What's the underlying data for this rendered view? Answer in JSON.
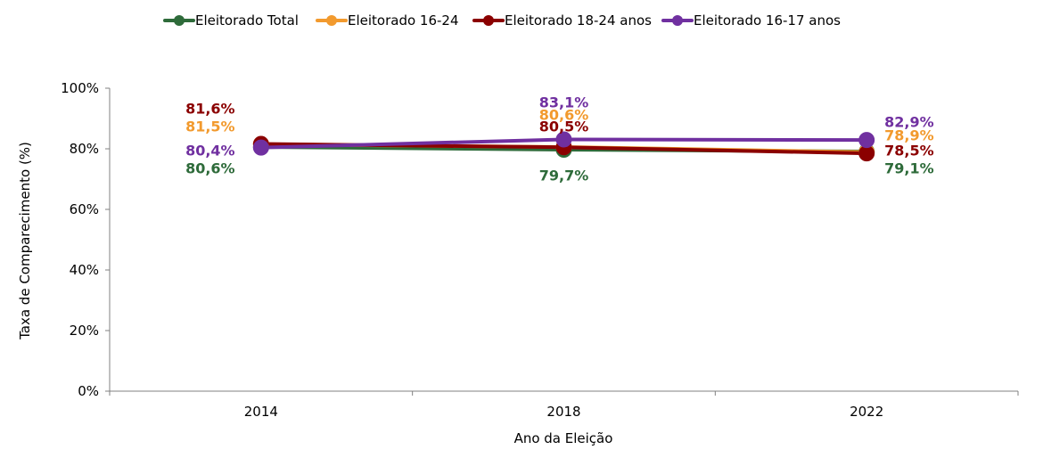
{
  "chart_data": {
    "type": "line",
    "title": "",
    "xlabel": "Ano da Eleição",
    "ylabel": "Taxa de Comparecimento (%)",
    "ylim": [
      0,
      100
    ],
    "y_ticks": [
      "0%",
      "20%",
      "40%",
      "60%",
      "80%",
      "100%"
    ],
    "grid": false,
    "legend_position": "top",
    "categories": [
      "2014",
      "2018",
      "2022"
    ],
    "series": [
      {
        "name": "Eleitorado Total",
        "color": "#2e6b3a",
        "values": [
          80.6,
          79.7,
          79.1
        ],
        "labels": [
          "80,6%",
          "79,7%",
          "79,1%"
        ]
      },
      {
        "name": "Eleitorado 16-24",
        "color": "#f29a2e",
        "values": [
          81.5,
          80.6,
          78.9
        ],
        "labels": [
          "81,5%",
          "80,6%",
          "78,9%"
        ]
      },
      {
        "name": "Eleitorado 18-24 anos",
        "color": "#8b0000",
        "values": [
          81.6,
          80.5,
          78.5
        ],
        "labels": [
          "81,6%",
          "80,5%",
          "78,5%"
        ]
      },
      {
        "name": "Eleitorado 16-17 anos",
        "color": "#7030a0",
        "values": [
          80.4,
          83.1,
          82.9
        ],
        "labels": [
          "80,4%",
          "83,1%",
          "82,9%"
        ]
      }
    ]
  }
}
